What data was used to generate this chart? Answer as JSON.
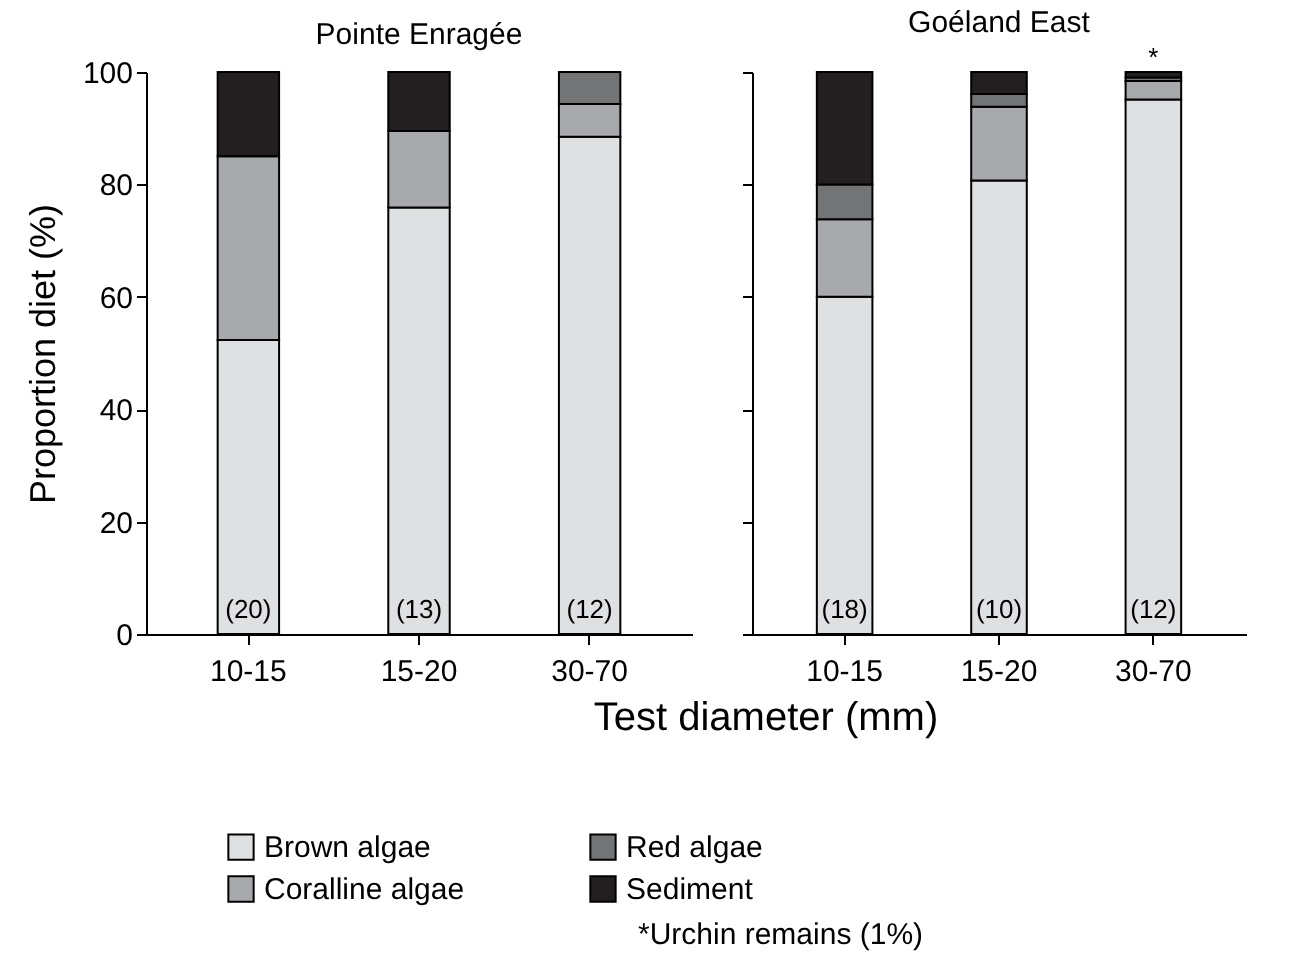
{
  "chart_data": [
    {
      "type": "bar",
      "title": "Pointe Enragée",
      "ylabel": "Proportion diet (%)",
      "xlabel": "Test diameter (mm)",
      "categories": [
        "10-15",
        "15-20",
        "30-70"
      ],
      "stacked": true,
      "ylim": [
        0,
        100
      ],
      "yticks": [
        0,
        20,
        40,
        60,
        80,
        100
      ],
      "legend": "bottom",
      "series": [
        {
          "name": "Brown algae",
          "color": "#dfe0e2",
          "values": [
            52.3,
            75.9,
            88.5
          ]
        },
        {
          "name": "Coralline algae",
          "color": "#a8a9ac",
          "values": [
            32.7,
            13.6,
            5.8
          ]
        },
        {
          "name": "Red algae",
          "color": "#737476",
          "values": [
            null,
            null,
            5.7
          ]
        },
        {
          "name": "Sediment",
          "color": "#231f20",
          "values": [
            15,
            10.5,
            null
          ]
        }
      ],
      "annotations": [
        "(20)",
        "(13)",
        "(12)"
      ]
    },
    {
      "type": "bar",
      "title": "Goéland East",
      "categories": [
        "10-15",
        "15-20",
        "30-70"
      ],
      "stacked": true,
      "ylim": [
        0,
        100
      ],
      "yticks": [
        0,
        20,
        40,
        60,
        80,
        100
      ],
      "tick_labels": "x",
      "legend": "bottom",
      "series": [
        {
          "name": "Brown algae",
          "color": "#dfe0e2",
          "values": [
            60,
            80.7,
            95.1
          ]
        },
        {
          "name": "Coralline algae",
          "color": "#a8a9ac",
          "values": [
            13.8,
            13.1,
            3.3
          ]
        },
        {
          "name": "Red algae",
          "color": "#737476",
          "values": [
            6.2,
            2.3,
            0.6
          ]
        },
        {
          "name": "Sediment",
          "color": "#231f20",
          "values": [
            20,
            3.9,
            1
          ]
        }
      ],
      "annotations": [
        "(18)",
        "(10)",
        "(12)",
        {
          "text": "*",
          "x": "30-70",
          "y": 100
        },
        "*Urchin remains (1%)"
      ]
    }
  ]
}
